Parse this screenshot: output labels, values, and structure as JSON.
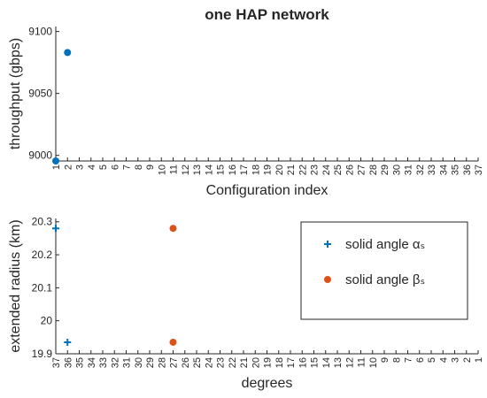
{
  "chart_data": [
    {
      "type": "scatter",
      "title": "one HAP network",
      "xlabel": "Configuration index",
      "ylabel": "throughput (gbps)",
      "xlim": [
        1,
        37
      ],
      "xticks": [
        1,
        2,
        3,
        4,
        5,
        6,
        7,
        8,
        9,
        10,
        11,
        12,
        13,
        14,
        15,
        16,
        17,
        18,
        19,
        20,
        21,
        22,
        23,
        24,
        25,
        26,
        27,
        28,
        29,
        30,
        31,
        32,
        33,
        34,
        35,
        36,
        37
      ],
      "ylim": [
        8995.5,
        9104
      ],
      "yticks": [
        9000,
        9050,
        9100
      ],
      "xreverse": false,
      "series": [
        {
          "color": "#0072bd",
          "marker": "o",
          "x": [
            1,
            2
          ],
          "values": [
            8995.5,
            9083
          ]
        }
      ]
    },
    {
      "type": "scatter",
      "xlabel": "degrees",
      "ylabel": "extended radius (km)",
      "xlim": [
        1,
        37
      ],
      "xticks": [
        1,
        2,
        3,
        4,
        5,
        6,
        7,
        8,
        9,
        10,
        11,
        12,
        13,
        14,
        15,
        16,
        17,
        18,
        19,
        20,
        21,
        22,
        23,
        24,
        25,
        26,
        27,
        28,
        29,
        30,
        31,
        32,
        33,
        34,
        35,
        36,
        37
      ],
      "ylim": [
        19.9,
        20.31
      ],
      "yticks": [
        19.9,
        20,
        20.1,
        20.2,
        20.3
      ],
      "xreverse": true,
      "legend": "northeast",
      "series": [
        {
          "name": "solid angle αₛ",
          "color": "#0072bd",
          "marker": "+",
          "x": [
            37,
            36
          ],
          "values": [
            20.28,
            19.935
          ]
        },
        {
          "name": "solid angle βₛ",
          "color": "#d95319",
          "marker": "o",
          "x": [
            27,
            27
          ],
          "values": [
            20.28,
            19.935
          ]
        }
      ]
    }
  ]
}
